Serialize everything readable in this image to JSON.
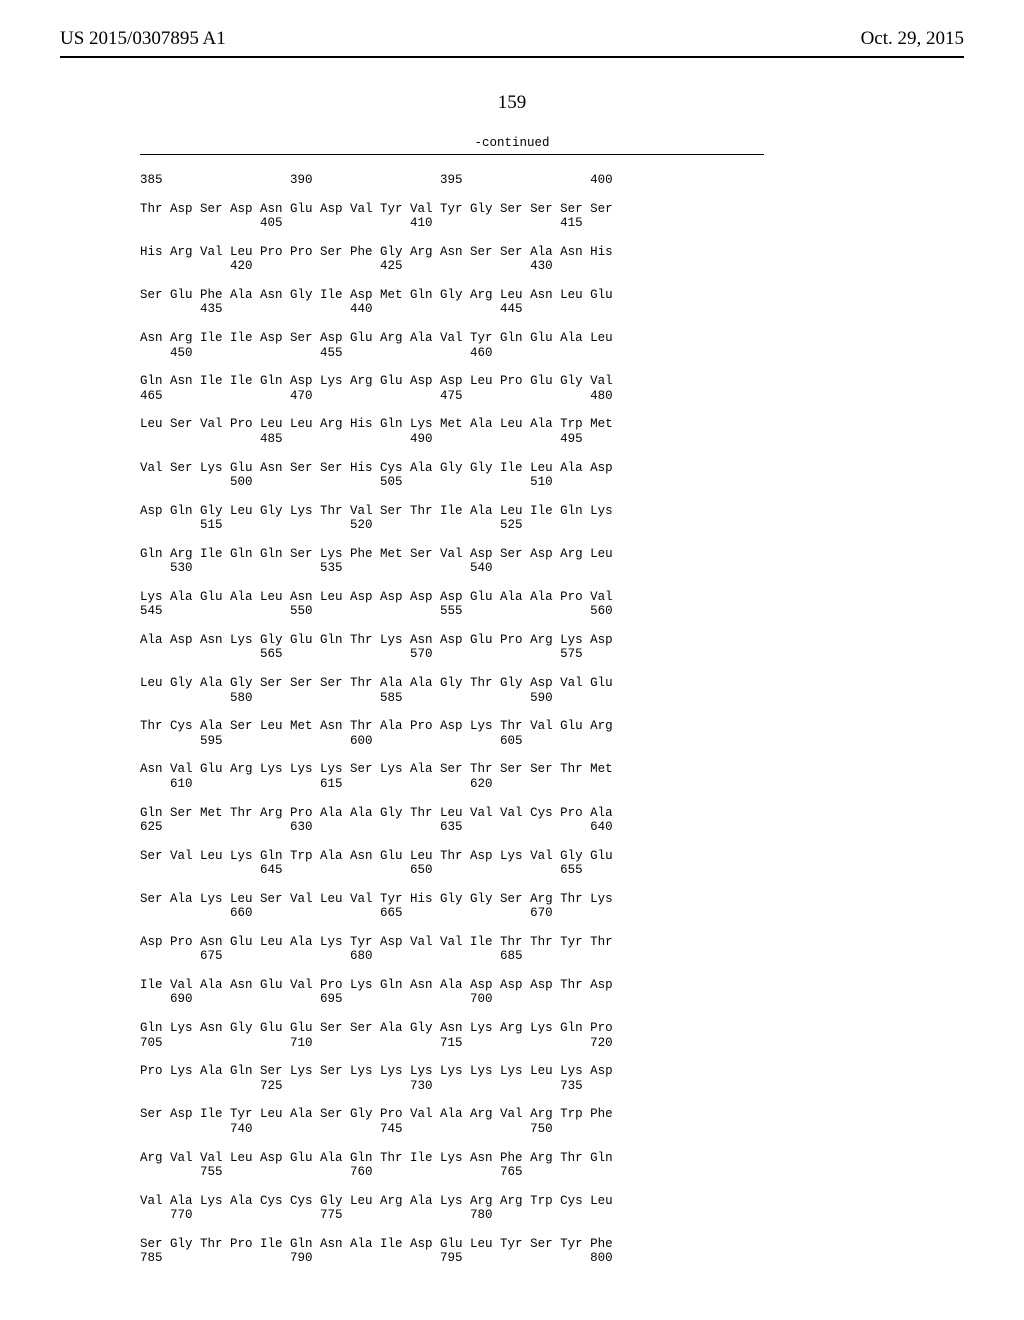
{
  "header": {
    "left": "US 2015/0307895 A1",
    "right": "Oct. 29, 2015"
  },
  "page_number": "159",
  "continued": "-continued",
  "sequence_blocks": [
    {
      "l1": "385                 390                 395                 400"
    },
    {
      "l1": "Thr Asp Ser Asp Asn Glu Asp Val Tyr Val Tyr Gly Ser Ser Ser Ser",
      "l2": "                405                 410                 415"
    },
    {
      "l1": "His Arg Val Leu Pro Pro Ser Phe Gly Arg Asn Ser Ser Ala Asn His",
      "l2": "            420                 425                 430"
    },
    {
      "l1": "Ser Glu Phe Ala Asn Gly Ile Asp Met Gln Gly Arg Leu Asn Leu Glu",
      "l2": "        435                 440                 445"
    },
    {
      "l1": "Asn Arg Ile Ile Asp Ser Asp Glu Arg Ala Val Tyr Gln Glu Ala Leu",
      "l2": "    450                 455                 460"
    },
    {
      "l1": "Gln Asn Ile Ile Gln Asp Lys Arg Glu Asp Asp Leu Pro Glu Gly Val",
      "l2": "465                 470                 475                 480"
    },
    {
      "l1": "Leu Ser Val Pro Leu Leu Arg His Gln Lys Met Ala Leu Ala Trp Met",
      "l2": "                485                 490                 495"
    },
    {
      "l1": "Val Ser Lys Glu Asn Ser Ser His Cys Ala Gly Gly Ile Leu Ala Asp",
      "l2": "            500                 505                 510"
    },
    {
      "l1": "Asp Gln Gly Leu Gly Lys Thr Val Ser Thr Ile Ala Leu Ile Gln Lys",
      "l2": "        515                 520                 525"
    },
    {
      "l1": "Gln Arg Ile Gln Gln Ser Lys Phe Met Ser Val Asp Ser Asp Arg Leu",
      "l2": "    530                 535                 540"
    },
    {
      "l1": "Lys Ala Glu Ala Leu Asn Leu Asp Asp Asp Asp Glu Ala Ala Pro Val",
      "l2": "545                 550                 555                 560"
    },
    {
      "l1": "Ala Asp Asn Lys Gly Glu Gln Thr Lys Asn Asp Glu Pro Arg Lys Asp",
      "l2": "                565                 570                 575"
    },
    {
      "l1": "Leu Gly Ala Gly Ser Ser Ser Thr Ala Ala Gly Thr Gly Asp Val Glu",
      "l2": "            580                 585                 590"
    },
    {
      "l1": "Thr Cys Ala Ser Leu Met Asn Thr Ala Pro Asp Lys Thr Val Glu Arg",
      "l2": "        595                 600                 605"
    },
    {
      "l1": "Asn Val Glu Arg Lys Lys Lys Ser Lys Ala Ser Thr Ser Ser Thr Met",
      "l2": "    610                 615                 620"
    },
    {
      "l1": "Gln Ser Met Thr Arg Pro Ala Ala Gly Thr Leu Val Val Cys Pro Ala",
      "l2": "625                 630                 635                 640"
    },
    {
      "l1": "Ser Val Leu Lys Gln Trp Ala Asn Glu Leu Thr Asp Lys Val Gly Glu",
      "l2": "                645                 650                 655"
    },
    {
      "l1": "Ser Ala Lys Leu Ser Val Leu Val Tyr His Gly Gly Ser Arg Thr Lys",
      "l2": "            660                 665                 670"
    },
    {
      "l1": "Asp Pro Asn Glu Leu Ala Lys Tyr Asp Val Val Ile Thr Thr Tyr Thr",
      "l2": "        675                 680                 685"
    },
    {
      "l1": "Ile Val Ala Asn Glu Val Pro Lys Gln Asn Ala Asp Asp Asp Thr Asp",
      "l2": "    690                 695                 700"
    },
    {
      "l1": "Gln Lys Asn Gly Glu Glu Ser Ser Ala Gly Asn Lys Arg Lys Gln Pro",
      "l2": "705                 710                 715                 720"
    },
    {
      "l1": "Pro Lys Ala Gln Ser Lys Ser Lys Lys Lys Lys Lys Lys Leu Lys Asp",
      "l2": "                725                 730                 735"
    },
    {
      "l1": "Ser Asp Ile Tyr Leu Ala Ser Gly Pro Val Ala Arg Val Arg Trp Phe",
      "l2": "            740                 745                 750"
    },
    {
      "l1": "Arg Val Val Leu Asp Glu Ala Gln Thr Ile Lys Asn Phe Arg Thr Gln",
      "l2": "        755                 760                 765"
    },
    {
      "l1": "Val Ala Lys Ala Cys Cys Gly Leu Arg Ala Lys Arg Arg Trp Cys Leu",
      "l2": "    770                 775                 780"
    },
    {
      "l1": "Ser Gly Thr Pro Ile Gln Asn Ala Ile Asp Glu Leu Tyr Ser Tyr Phe",
      "l2": "785                 790                 795                 800"
    }
  ]
}
